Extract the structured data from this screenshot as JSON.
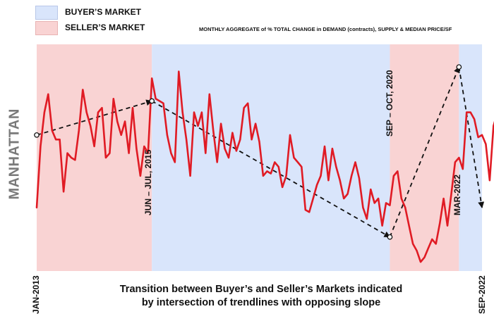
{
  "legend": {
    "buyers": {
      "label": "BUYER’S MARKET",
      "color": "#d9e5fb"
    },
    "sellers": {
      "label": "SELLER’S MARKET",
      "color": "#f9d3d3"
    }
  },
  "subtitle": "MONTHLY AGGREGATE of % TOTAL CHANGE in DEMAND (contracts), SUPPLY & MEDIAN PRICE/SF",
  "ylabel": "MANHATTAN",
  "caption": {
    "line1": "Transition between Buyer’s and Seller’s Markets indicated",
    "line2": "by intersection of trendlines with opposing slope"
  },
  "annotations": {
    "jun_jul_2015": "JUN – JUL, 2015",
    "sep_oct_2020": "SEP – OCT, 2020",
    "mar_2022": "MAR-2022"
  },
  "axis": {
    "start": "JAN-2013",
    "end": "SEP-2022"
  },
  "chart_data": {
    "type": "line",
    "x_start": "2013-01",
    "x_end": "2022-09",
    "regions": [
      {
        "market": "sellers",
        "from": "2013-01",
        "to": "2015-07"
      },
      {
        "market": "buyers",
        "from": "2015-07",
        "to": "2020-09"
      },
      {
        "market": "sellers",
        "from": "2020-09",
        "to": "2022-03"
      },
      {
        "market": "buyers",
        "from": "2022-03",
        "to": "2022-09"
      }
    ],
    "series": [
      {
        "color": "#e01b24",
        "values": [
          28,
          55,
          70,
          78,
          62,
          58,
          58,
          35,
          52,
          50,
          49,
          62,
          80,
          70,
          64,
          55,
          70,
          72,
          50,
          52,
          76,
          66,
          60,
          66,
          52,
          72,
          54,
          42,
          55,
          52,
          85,
          76,
          75,
          74,
          60,
          52,
          48,
          88,
          70,
          58,
          42,
          70,
          64,
          70,
          52,
          78,
          62,
          48,
          65,
          54,
          50,
          61,
          53,
          58,
          72,
          74,
          58,
          65,
          57,
          42,
          44,
          43,
          48,
          46,
          37,
          42,
          60,
          50,
          48,
          46,
          27,
          26,
          32,
          38,
          42,
          55,
          40,
          54,
          46,
          40,
          32,
          34,
          42,
          48,
          41,
          28,
          23,
          36,
          30,
          32,
          20,
          30,
          29,
          42,
          44,
          32,
          28,
          20,
          12,
          9,
          4,
          6,
          10,
          14,
          12,
          21,
          32,
          20,
          34,
          48,
          50,
          45,
          70,
          70,
          67,
          59,
          60,
          56,
          40,
          64,
          70,
          63,
          61,
          66,
          98,
          83,
          57,
          32,
          43,
          32,
          36
        ]
      }
    ],
    "trendlines": [
      {
        "from": {
          "x": "2013-01",
          "y": 60
        },
        "to": {
          "x": "2015-07",
          "y": 75
        }
      },
      {
        "from": {
          "x": "2015-07",
          "y": 75
        },
        "to": {
          "x": "2020-09",
          "y": 15
        }
      },
      {
        "from": {
          "x": "2020-09",
          "y": 15
        },
        "to": {
          "x": "2022-03",
          "y": 90
        }
      },
      {
        "from": {
          "x": "2022-03",
          "y": 90
        },
        "to": {
          "x": "2022-09",
          "y": 28
        }
      }
    ],
    "ylim": [
      0,
      100
    ],
    "grid": false
  }
}
